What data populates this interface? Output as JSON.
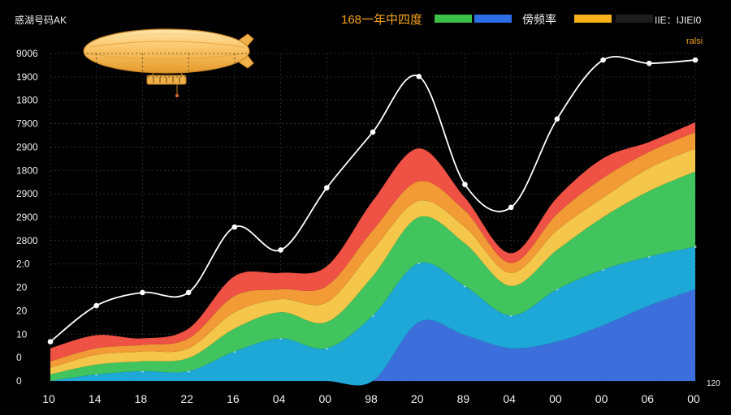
{
  "header": {
    "corner_label": "惑湖号码AK",
    "title": "168一年中四度",
    "right_label": "IIE：IJIEI0",
    "unit": "ralsi",
    "x_end_label": "120"
  },
  "chart_data": {
    "type": "area",
    "stacked": true,
    "categories": [
      "10",
      "14",
      "18",
      "22",
      "16",
      "04",
      "00",
      "98",
      "20",
      "89",
      "04",
      "00",
      "00",
      "06",
      "00"
    ],
    "y_tick_labels": [
      "0",
      "0",
      "10",
      "20",
      "20",
      "2:0",
      "2800",
      "2900",
      "2900",
      "1800",
      "2900",
      "7900",
      "1800",
      "1900",
      "9006"
    ],
    "ylim": [
      0,
      100
    ],
    "grid": true,
    "grid_x": true,
    "legend_position": "top",
    "legend": [
      {
        "label": "",
        "color": "#3cc04a"
      },
      {
        "label": "",
        "color": "#2d6ee6"
      },
      {
        "label": "傍频率",
        "color": "#f7b21b"
      },
      {
        "label": "",
        "color": "#1e1e1e"
      }
    ],
    "series": [
      {
        "color": "#3d6fdc",
        "values": [
          0,
          0,
          0,
          0,
          0,
          0,
          0,
          0,
          18,
          14,
          10,
          12,
          17,
          23,
          28
        ]
      },
      {
        "color": "#1ea8d8",
        "values": [
          0,
          2,
          3,
          3,
          9,
          13,
          10,
          20,
          18,
          15,
          10,
          16,
          17,
          15,
          13
        ]
      },
      {
        "color": "#41c45d",
        "values": [
          2,
          3,
          3,
          4,
          7,
          8,
          8,
          12,
          14,
          13,
          9,
          12,
          16,
          20,
          23
        ]
      },
      {
        "color": "#f4c64a",
        "values": [
          2,
          3,
          3,
          3,
          5,
          4,
          6,
          8,
          5,
          5,
          4,
          6,
          6,
          7,
          7
        ]
      },
      {
        "color": "#f29a35",
        "values": [
          2,
          2,
          2,
          3,
          5,
          3,
          5,
          6,
          6,
          5,
          3,
          5,
          6,
          5,
          5
        ]
      },
      {
        "color": "#ef5145",
        "values": [
          4,
          4,
          2,
          3,
          6,
          5,
          6,
          9,
          10,
          4,
          3,
          5,
          6,
          3,
          3
        ]
      }
    ],
    "line": {
      "color": "#ffffff",
      "values": [
        12,
        23,
        27,
        27,
        47,
        40,
        59,
        76,
        93,
        60,
        53,
        80,
        98,
        97,
        98
      ]
    }
  }
}
